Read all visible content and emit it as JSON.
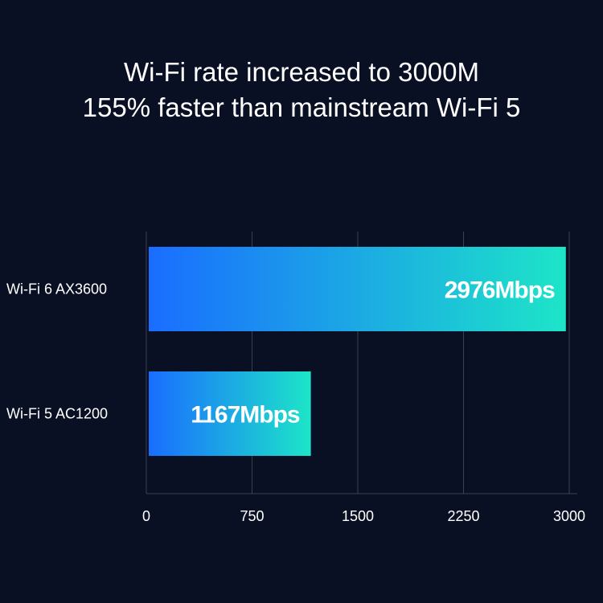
{
  "headline": {
    "line1": "Wi-Fi rate increased to 3000M",
    "line2": "155% faster than mainstream Wi-Fi 5"
  },
  "colors": {
    "background": "#0a1024",
    "bar_gradient_start": "#1a6dff",
    "bar_gradient_end": "#1de5c8",
    "gridline": "#3a3f52"
  },
  "chart_data": {
    "type": "bar",
    "orientation": "horizontal",
    "categories": [
      "Wi-Fi 6 AX3600",
      "Wi-Fi 5 AC1200"
    ],
    "values": [
      2976,
      1167
    ],
    "value_labels": [
      "2976Mbps",
      "1167Mbps"
    ],
    "xlim": [
      0,
      3000
    ],
    "xticks": [
      0,
      750,
      1500,
      2250,
      3000
    ],
    "xtick_labels": [
      "0",
      "750",
      "1500",
      "2250",
      "3000"
    ],
    "grid": true,
    "title": "",
    "xlabel": "",
    "ylabel": ""
  }
}
